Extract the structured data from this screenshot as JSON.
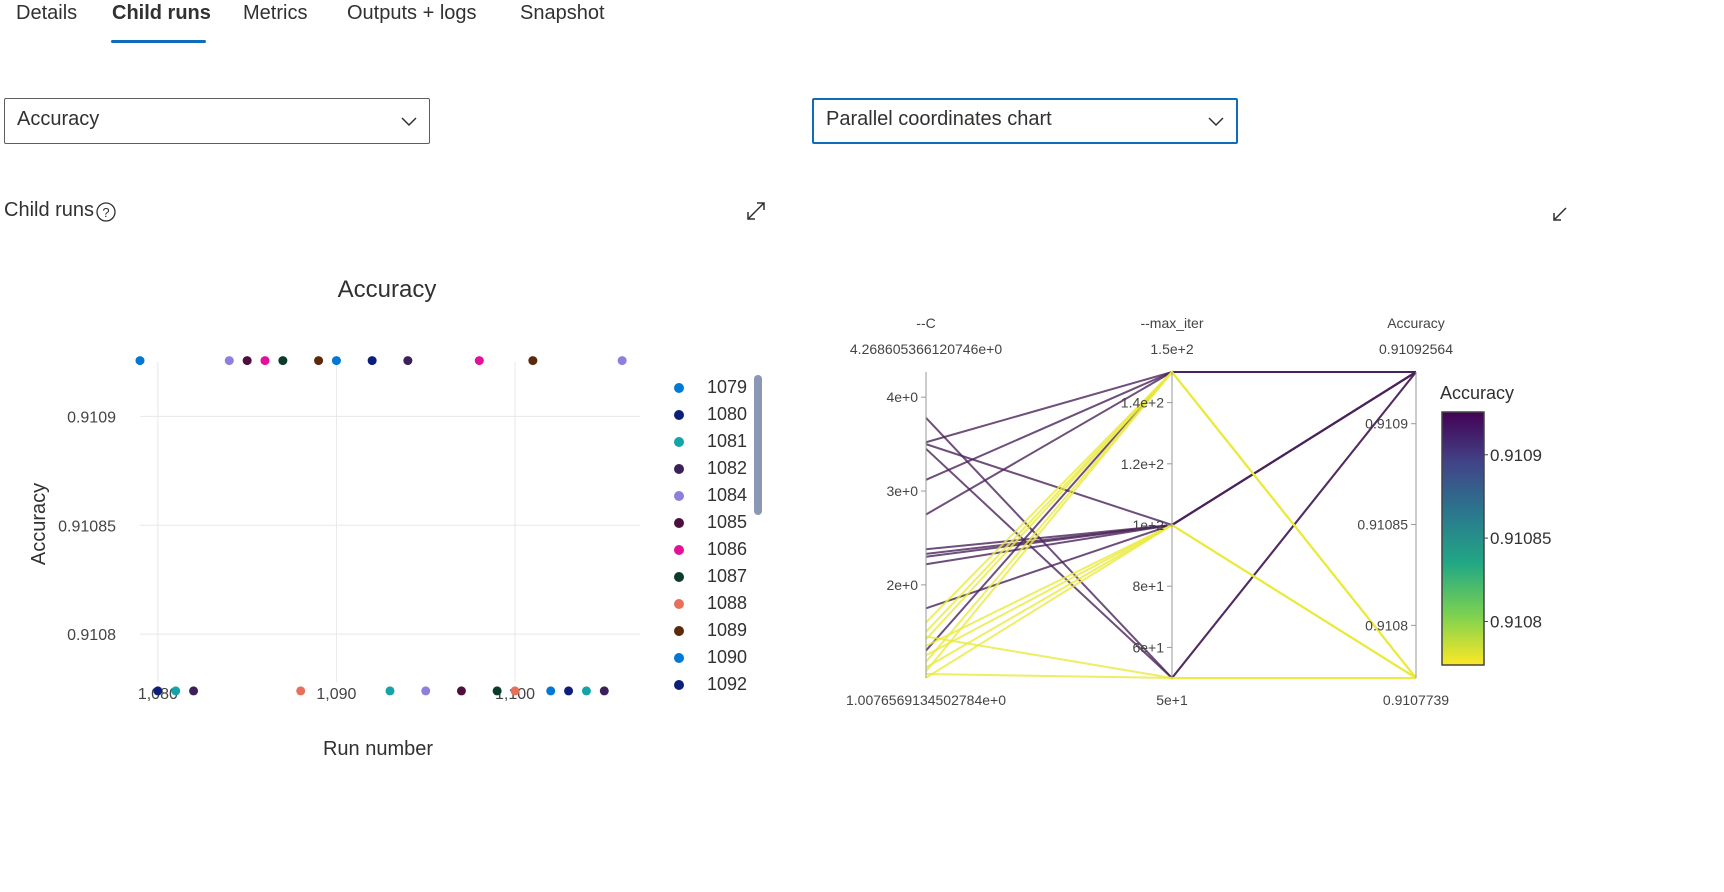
{
  "tabs": [
    {
      "label": "Details",
      "active": false
    },
    {
      "label": "Child runs",
      "active": true
    },
    {
      "label": "Metrics",
      "active": false
    },
    {
      "label": "Outputs + logs",
      "active": false
    },
    {
      "label": "Snapshot",
      "active": false
    }
  ],
  "metric_dropdown": {
    "value": "Accuracy"
  },
  "chart_type_dropdown": {
    "value": "Parallel coordinates chart"
  },
  "section": {
    "title": "Child runs"
  },
  "icons": {
    "help": "help-circle-icon",
    "expand": "expand-icon",
    "collapse": "collapse-icon",
    "chevron": "chevron-down-icon"
  },
  "colors": {
    "accent": "#0f6cbd",
    "purple": "#4a235a",
    "yellow": "#eaea3c"
  },
  "chart_data": [
    {
      "type": "scatter",
      "title": "Accuracy",
      "xlabel": "Run number",
      "ylabel": "Accuracy",
      "xlim": [
        1079,
        1107
      ],
      "ylim": [
        0.910778,
        0.910925
      ],
      "xticks": [
        1080,
        1090,
        1100
      ],
      "xtick_labels": [
        "1,080",
        "1,090",
        "1,100"
      ],
      "yticks": [
        0.9108,
        0.91085,
        0.9109
      ],
      "ytick_labels": [
        "0.9108",
        "0.91085",
        "0.9109"
      ],
      "grid": true,
      "legend_position": "right",
      "points": [
        {
          "run": 1079,
          "y": 0.91092564,
          "color": "#0078d4"
        },
        {
          "run": 1080,
          "y": 0.9107739,
          "color": "#0b1f7a"
        },
        {
          "run": 1081,
          "y": 0.9107739,
          "color": "#13a3a8"
        },
        {
          "run": 1082,
          "y": 0.9107739,
          "color": "#3b2159"
        },
        {
          "run": 1084,
          "y": 0.91092564,
          "color": "#8f7fdc"
        },
        {
          "run": 1085,
          "y": 0.91092564,
          "color": "#4e0f3e"
        },
        {
          "run": 1086,
          "y": 0.91092564,
          "color": "#e3109b"
        },
        {
          "run": 1087,
          "y": 0.91092564,
          "color": "#0b3b2a"
        },
        {
          "run": 1088,
          "y": 0.9107739,
          "color": "#e8705a"
        },
        {
          "run": 1089,
          "y": 0.91092564,
          "color": "#5c2a0a"
        },
        {
          "run": 1090,
          "y": 0.91092564,
          "color": "#0078d4"
        },
        {
          "run": 1092,
          "y": 0.91092564,
          "color": "#0b1f7a"
        },
        {
          "run": 1093,
          "y": 0.9107739,
          "color": "#13a3a8"
        },
        {
          "run": 1094,
          "y": 0.91092564,
          "color": "#3b2159"
        },
        {
          "run": 1095,
          "y": 0.9107739,
          "color": "#8f7fdc"
        },
        {
          "run": 1097,
          "y": 0.9107739,
          "color": "#4e0f3e"
        },
        {
          "run": 1098,
          "y": 0.91092564,
          "color": "#e3109b"
        },
        {
          "run": 1099,
          "y": 0.9107739,
          "color": "#0b3b2a"
        },
        {
          "run": 1100,
          "y": 0.9107739,
          "color": "#e8705a"
        },
        {
          "run": 1101,
          "y": 0.91092564,
          "color": "#5c2a0a"
        },
        {
          "run": 1102,
          "y": 0.9107739,
          "color": "#0078d4"
        },
        {
          "run": 1103,
          "y": 0.9107739,
          "color": "#0b1f7a"
        },
        {
          "run": 1104,
          "y": 0.9107739,
          "color": "#13a3a8"
        },
        {
          "run": 1105,
          "y": 0.9107739,
          "color": "#3b2159"
        },
        {
          "run": 1106,
          "y": 0.91092564,
          "color": "#8f7fdc"
        }
      ],
      "legend": [
        {
          "label": "1079",
          "color": "#0078d4"
        },
        {
          "label": "1080",
          "color": "#0b1f7a"
        },
        {
          "label": "1081",
          "color": "#13a3a8"
        },
        {
          "label": "1082",
          "color": "#3b2159"
        },
        {
          "label": "1084",
          "color": "#8f7fdc"
        },
        {
          "label": "1085",
          "color": "#4e0f3e"
        },
        {
          "label": "1086",
          "color": "#e3109b"
        },
        {
          "label": "1087",
          "color": "#0b3b2a"
        },
        {
          "label": "1088",
          "color": "#e8705a"
        },
        {
          "label": "1089",
          "color": "#5c2a0a"
        },
        {
          "label": "1090",
          "color": "#0078d4"
        },
        {
          "label": "1092",
          "color": "#0b1f7a"
        }
      ]
    },
    {
      "type": "parallel_coordinates",
      "axes": [
        {
          "name": "--C",
          "range": [
            1.0076569134502784,
            4.268605366120746
          ],
          "max_label": "4.268605366120746e+0",
          "min_label": "1.0076569134502784e+0",
          "ticks": [
            2,
            3,
            4
          ],
          "tick_labels": [
            "2e+0",
            "3e+0",
            "4e+0"
          ]
        },
        {
          "name": "--max_iter",
          "range": [
            50,
            150
          ],
          "max_label": "1.5e+2",
          "min_label": "5e+1",
          "ticks": [
            60,
            80,
            100,
            120,
            140
          ],
          "tick_labels": [
            "6e+1",
            "8e+1",
            "1e+2",
            "1.2e+2",
            "1.4e+2"
          ]
        },
        {
          "name": "Accuracy",
          "range": [
            0.9107739,
            0.91092564
          ],
          "max_label": "0.91092564",
          "min_label": "0.9107739",
          "ticks": [
            0.9108,
            0.91085,
            0.9109
          ],
          "tick_labels": [
            "0.9108",
            "0.91085",
            "0.9109"
          ]
        }
      ],
      "colorscale": {
        "name": "Accuracy",
        "ticks": [
          0.9108,
          0.91085,
          0.9109
        ],
        "tick_labels": [
          "0.9108",
          "0.91085",
          "0.9109"
        ],
        "low_color": "#eaea3c",
        "high_color": "#4a235a"
      },
      "lines": [
        {
          "C": 3.78,
          "max_iter": 50,
          "acc": 0.91092564
        },
        {
          "C": 3.52,
          "max_iter": 150,
          "acc": 0.91092564
        },
        {
          "C": 3.5,
          "max_iter": 100,
          "acc": 0.91092564
        },
        {
          "C": 3.45,
          "max_iter": 50,
          "acc": 0.91092564
        },
        {
          "C": 3.12,
          "max_iter": 150,
          "acc": 0.91092564
        },
        {
          "C": 2.75,
          "max_iter": 150,
          "acc": 0.91092564
        },
        {
          "C": 2.38,
          "max_iter": 100,
          "acc": 0.91092564
        },
        {
          "C": 2.33,
          "max_iter": 100,
          "acc": 0.91092564
        },
        {
          "C": 2.3,
          "max_iter": 100,
          "acc": 0.91092564
        },
        {
          "C": 2.22,
          "max_iter": 100,
          "acc": 0.91092564
        },
        {
          "C": 1.75,
          "max_iter": 100,
          "acc": 0.91092564
        },
        {
          "C": 1.3,
          "max_iter": 150,
          "acc": 0.91092564
        },
        {
          "C": 1.6,
          "max_iter": 150,
          "acc": 0.9107739
        },
        {
          "C": 1.5,
          "max_iter": 150,
          "acc": 0.9107739
        },
        {
          "C": 1.42,
          "max_iter": 150,
          "acc": 0.9107739
        },
        {
          "C": 1.35,
          "max_iter": 100,
          "acc": 0.9107739
        },
        {
          "C": 1.45,
          "max_iter": 50,
          "acc": 0.9107739
        },
        {
          "C": 1.25,
          "max_iter": 100,
          "acc": 0.9107739
        },
        {
          "C": 1.18,
          "max_iter": 150,
          "acc": 0.9107739
        },
        {
          "C": 1.12,
          "max_iter": 100,
          "acc": 0.9107739
        },
        {
          "C": 1.08,
          "max_iter": 150,
          "acc": 0.9107739
        },
        {
          "C": 1.05,
          "max_iter": 50,
          "acc": 0.9107739
        },
        {
          "C": 1.01,
          "max_iter": 100,
          "acc": 0.9107739
        }
      ]
    }
  ]
}
